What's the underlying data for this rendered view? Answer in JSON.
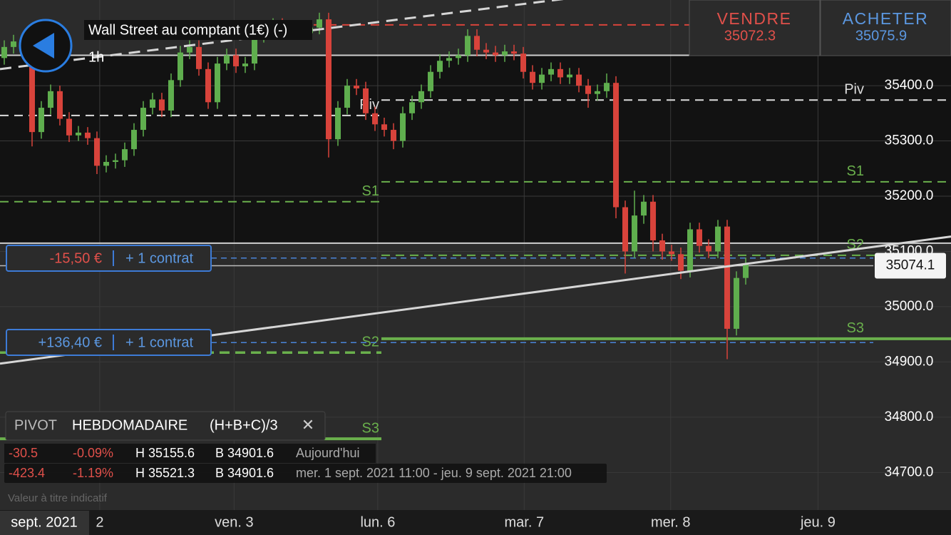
{
  "header": {
    "instrument": "Wall Street au comptant (1€) (-)",
    "timeframe": "1h"
  },
  "trade": {
    "sell": {
      "label": "VENDRE",
      "price": "35072.3"
    },
    "buy": {
      "label": "ACHETER",
      "price": "35075.9"
    }
  },
  "pivot_panel": {
    "title": "PIVOT",
    "period": "HEBDOMADAIRE",
    "formula": "(H+B+C)/3",
    "close": "✕",
    "rows": [
      [
        "-30.5",
        "-0.09%",
        "H 35155.6",
        "B 34901.6",
        "Aujourd'hui"
      ],
      [
        "-423.4",
        "-1.19%",
        "H 35521.3",
        "B 34901.6",
        "mer. 1 sept. 2021 11:00 - jeu. 9 sept. 2021 21:00"
      ]
    ]
  },
  "note": "Valeur à titre indicatif",
  "chart_data": {
    "type": "candlestick",
    "up_color": "#5fae4e",
    "down_color": "#d8433b",
    "open": [
      35450,
      35470,
      35480,
      35460,
      35316,
      35360,
      35390,
      35340,
      35310,
      35315,
      35305,
      35255,
      35262,
      35265,
      35285,
      35320,
      35360,
      35375,
      35355,
      35410,
      35460,
      35470,
      35430,
      35370,
      35440,
      35455,
      35435,
      35440,
      35490,
      35500,
      35510,
      35505,
      35500,
      35495,
      35505,
      35520,
      35303,
      35360,
      35400,
      35395,
      35350,
      35330,
      35320,
      35300,
      35350,
      35370,
      35390,
      35425,
      35445,
      35450,
      35455,
      35490,
      35465,
      35460,
      35455,
      35462,
      35458,
      35425,
      35405,
      35420,
      35430,
      35415,
      35420,
      35400,
      35385,
      35390,
      35405,
      35180,
      35100,
      35165,
      35190,
      35120,
      35100,
      35095,
      35065,
      35140,
      35110,
      35100,
      35145,
      34960,
      35052
    ],
    "high": [
      35482,
      35492,
      35492,
      35472,
      35372,
      35402,
      35400,
      35352,
      35327,
      35325,
      35317,
      35274,
      35277,
      35297,
      35332,
      35372,
      35387,
      35387,
      35422,
      35472,
      35482,
      35482,
      35442,
      35452,
      35467,
      35467,
      35452,
      35502,
      35512,
      35522,
      35522,
      35517,
      35512,
      35517,
      35532,
      35532,
      35372,
      35412,
      35412,
      35407,
      35362,
      35342,
      35332,
      35362,
      35382,
      35402,
      35437,
      35457,
      35462,
      35467,
      35502,
      35502,
      35477,
      35472,
      35474,
      35474,
      35470,
      35437,
      35432,
      35442,
      35442,
      35432,
      35432,
      35412,
      35402,
      35422,
      35417,
      35192,
      35210,
      35202,
      35202,
      35132,
      35112,
      35107,
      35152,
      35152,
      35122,
      35157,
      35157,
      35064,
      35089
    ],
    "low": [
      35438,
      35458,
      35448,
      35290,
      35304,
      35348,
      35328,
      35298,
      35300,
      35293,
      35240,
      35243,
      35250,
      35253,
      35273,
      35308,
      35348,
      35343,
      35343,
      35398,
      35448,
      35418,
      35358,
      35358,
      35428,
      35423,
      35423,
      35428,
      35478,
      35488,
      35493,
      35488,
      35483,
      35483,
      35493,
      35270,
      35291,
      35348,
      35383,
      35338,
      35318,
      35308,
      35285,
      35288,
      35338,
      35358,
      35378,
      35413,
      35433,
      35438,
      35443,
      35453,
      35448,
      35443,
      35443,
      35446,
      35413,
      35393,
      35393,
      35408,
      35403,
      35403,
      35388,
      35360,
      35373,
      35378,
      35160,
      35060,
      35088,
      35150,
      35100,
      35085,
      35083,
      35050,
      35053,
      35098,
      35088,
      35088,
      34905,
      34948,
      35040
    ],
    "close": [
      35470,
      35480,
      35460,
      35316,
      35360,
      35390,
      35340,
      35310,
      35315,
      35305,
      35255,
      35262,
      35265,
      35285,
      35320,
      35360,
      35375,
      35355,
      35410,
      35460,
      35470,
      35430,
      35370,
      35440,
      35455,
      35435,
      35440,
      35490,
      35500,
      35510,
      35505,
      35500,
      35495,
      35505,
      35520,
      35303,
      35360,
      35400,
      35395,
      35350,
      35330,
      35320,
      35300,
      35350,
      35370,
      35390,
      35425,
      35445,
      35450,
      35455,
      35490,
      35465,
      35460,
      35455,
      35462,
      35458,
      35425,
      35405,
      35420,
      35430,
      35415,
      35420,
      35400,
      35385,
      35390,
      35405,
      35180,
      35100,
      35165,
      35190,
      35120,
      35100,
      35095,
      35065,
      35140,
      35110,
      35100,
      35145,
      34960,
      35052,
      35077
    ],
    "xlim": [
      -0.46,
      102.15
    ],
    "xticks": [
      {
        "value": 10.3,
        "label": "2"
      },
      {
        "value": 24.8,
        "label": "ven. 3"
      },
      {
        "value": 40.3,
        "label": "lun. 6"
      },
      {
        "value": 56.1,
        "label": "mar. 7"
      },
      {
        "value": 71.9,
        "label": "mer. 8"
      },
      {
        "value": 87.8,
        "label": "jeu. 9"
      }
    ],
    "x_current_label": "sept. 2021",
    "ylim": [
      34632,
      35555
    ],
    "yticks": [
      {
        "value": 34700,
        "label": "34700.0"
      },
      {
        "value": 34800,
        "label": "34800.0"
      },
      {
        "value": 34900,
        "label": "34900.0"
      },
      {
        "value": 35000,
        "label": "35000.0"
      },
      {
        "value": 35100,
        "label": "35100.0"
      },
      {
        "value": 35200,
        "label": "35200.0"
      },
      {
        "value": 35300,
        "label": "35300.0"
      },
      {
        "value": 35400,
        "label": "35400.0"
      }
    ],
    "grid": true,
    "last_price": 35074.1,
    "levels": [
      {
        "value": 35510,
        "color": "#d8433b",
        "style": "dashed"
      },
      {
        "value": 35455,
        "color": "#cfcfcf",
        "style": "solid"
      },
      {
        "value": 35115,
        "color": "#cfcfcf",
        "style": "solid"
      }
    ],
    "trendlines": [
      {
        "values": [
          34897,
          35127
        ],
        "color": "#d6d6d6",
        "style": "solid"
      },
      {
        "values": [
          35430,
          35644
        ],
        "color": "#d6d6d6",
        "style": "dashed"
      }
    ],
    "pivots_previous": [
      {
        "label": "Piv",
        "value": 35346,
        "color": "#dddddd",
        "style": "dashed"
      },
      {
        "label": "S1",
        "value": 35190,
        "color": "#6ab04c",
        "style": "dashed"
      },
      {
        "label": "S2",
        "value": 34917,
        "color": "#6ab04c",
        "style": "thick-dashed"
      },
      {
        "label": "S3",
        "value": 34761,
        "color": "#6ab04c",
        "style": "thick"
      }
    ],
    "pivots_current": [
      {
        "label": "Piv",
        "value": 35374,
        "color": "#dddddd",
        "style": "dashed"
      },
      {
        "label": "S1",
        "value": 35226,
        "color": "#6ab04c",
        "style": "dashed"
      },
      {
        "label": "S2",
        "value": 35093,
        "color": "#6ab04c",
        "style": "dashed"
      },
      {
        "label": "S3",
        "value": 34942,
        "color": "#6ab04c",
        "style": "thick"
      }
    ],
    "positions": [
      {
        "pnl": "-15,50 €",
        "size": "+ 1 contrat",
        "entry": 35088
      },
      {
        "pnl": "+136,40 €",
        "size": "+ 1 contrat",
        "entry": 34935
      }
    ]
  }
}
